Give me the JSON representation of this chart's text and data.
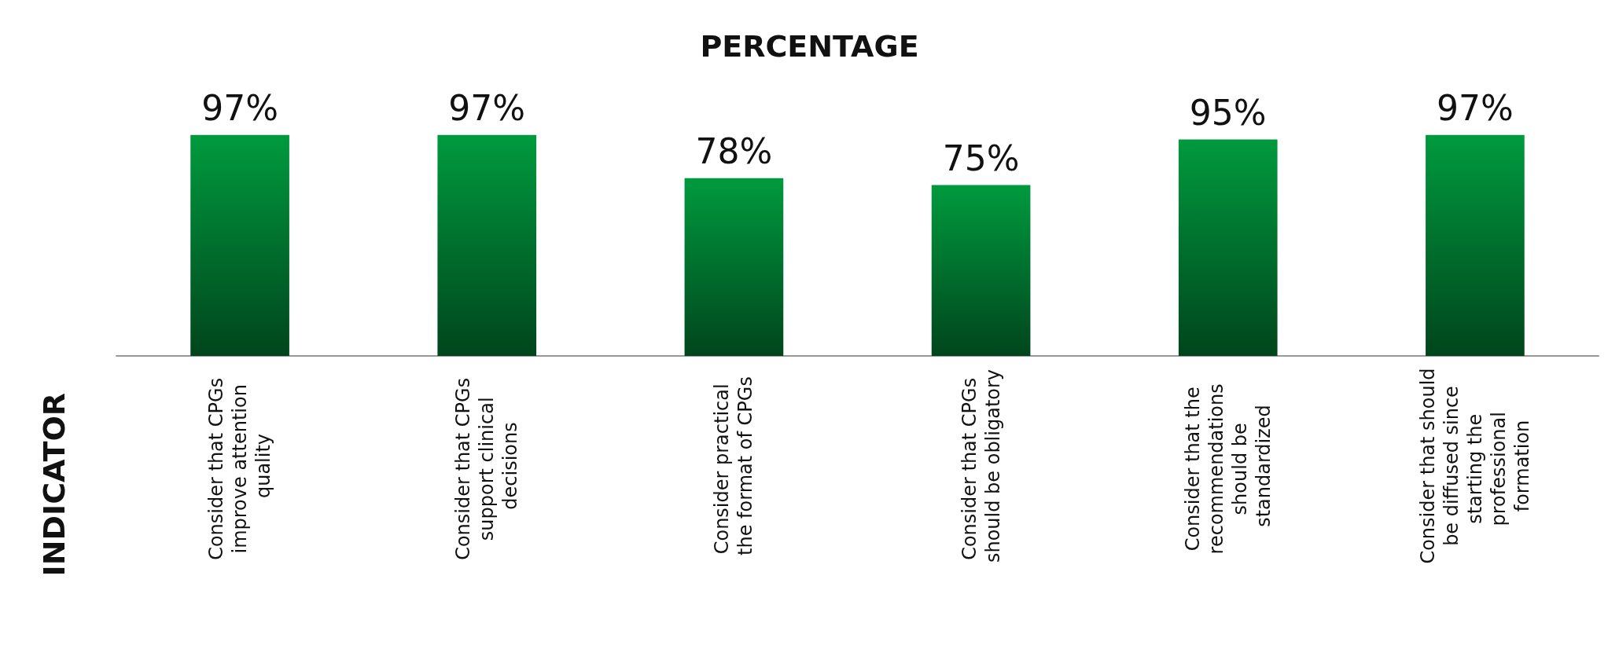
{
  "chart_data": {
    "type": "bar",
    "title": "PERCENTAGE",
    "ylabel": "INDICATOR",
    "categories": [
      "Consider that CPGs improve attention quality",
      "Consider that CPGs support clinical decisions",
      "Consider practical the format of CPGs",
      "Consider that CPGs should be obligatory",
      "Consider that the recommendations should be standardized",
      "Consider that should be diffused since starting the professional formation"
    ],
    "values": [
      97,
      97,
      78,
      75,
      95,
      97
    ],
    "value_labels": [
      "97%",
      "97%",
      "78%",
      "75%",
      "95%",
      "97%"
    ],
    "color": "#009a3e",
    "grid": false,
    "tick_labels": "x"
  }
}
